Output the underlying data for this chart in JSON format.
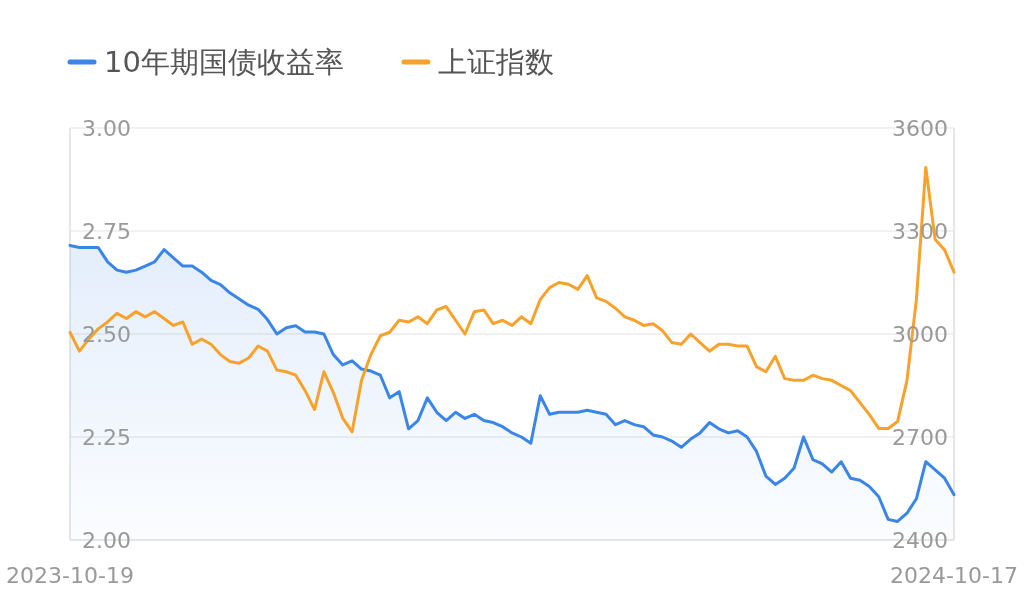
{
  "chart_data": {
    "type": "line",
    "categories": [
      "2023-10-19",
      null,
      null,
      null,
      null,
      null,
      null,
      null,
      null,
      null,
      null,
      null,
      null,
      null,
      null,
      null,
      null,
      null,
      null,
      null,
      null,
      null,
      null,
      null,
      null,
      null,
      null,
      null,
      null,
      null,
      null,
      null,
      null,
      null,
      null,
      null,
      null,
      null,
      null,
      null,
      null,
      null,
      null,
      null,
      null,
      null,
      null,
      null,
      null,
      null,
      null,
      null,
      null,
      null,
      null,
      null,
      null,
      null,
      null,
      null,
      null,
      null,
      null,
      null,
      null,
      null,
      null,
      null,
      null,
      null,
      null,
      null,
      null,
      null,
      null,
      null,
      null,
      null,
      null,
      null,
      null,
      null,
      null,
      null,
      null,
      null,
      null,
      null,
      null,
      null,
      null,
      null,
      null,
      null,
      "2024-10-17"
    ],
    "series": [
      {
        "name": "10年期国债收益率",
        "type": "area",
        "color": "#3a86e8",
        "values": [
          2.715,
          2.71,
          2.71,
          2.71,
          2.675,
          2.655,
          2.65,
          2.655,
          2.665,
          2.675,
          2.705,
          2.685,
          2.665,
          2.665,
          2.65,
          2.63,
          2.62,
          2.6,
          2.585,
          2.57,
          2.56,
          2.535,
          2.5,
          2.515,
          2.52,
          2.505,
          2.505,
          2.5,
          2.45,
          2.425,
          2.435,
          2.415,
          2.41,
          2.4,
          2.345,
          2.36,
          2.27,
          2.29,
          2.345,
          2.31,
          2.29,
          2.31,
          2.295,
          2.305,
          2.29,
          2.285,
          2.275,
          2.26,
          2.25,
          2.235,
          2.35,
          2.305,
          2.31,
          2.31,
          2.31,
          2.315,
          2.31,
          2.305,
          2.28,
          2.29,
          2.28,
          2.275,
          2.255,
          2.25,
          2.24,
          2.225,
          2.245,
          2.26,
          2.285,
          2.27,
          2.26,
          2.265,
          2.25,
          2.215,
          2.155,
          2.135,
          2.15,
          2.175,
          2.25,
          2.195,
          2.185,
          2.165,
          2.19,
          2.15,
          2.145,
          2.13,
          2.105,
          2.05,
          2.045,
          2.065,
          2.1,
          2.19,
          2.17,
          2.15,
          2.11
        ]
      },
      {
        "name": "上证指数",
        "axis": "y2",
        "color": "#f8a22c",
        "values": [
          3005,
          2950,
          2985,
          3015,
          3035,
          3060,
          3045,
          3065,
          3050,
          3065,
          3045,
          3025,
          3035,
          2970,
          2985,
          2970,
          2940,
          2920,
          2915,
          2930,
          2965,
          2950,
          2895,
          2890,
          2880,
          2835,
          2780,
          2890,
          2830,
          2755,
          2715,
          2865,
          2940,
          2995,
          3005,
          3040,
          3035,
          3050,
          3030,
          3070,
          3080,
          3040,
          3000,
          3065,
          3070,
          3030,
          3040,
          3025,
          3050,
          3030,
          3100,
          3135,
          3150,
          3145,
          3130,
          3170,
          3105,
          3095,
          3075,
          3050,
          3040,
          3025,
          3030,
          3010,
          2975,
          2970,
          3000,
          2975,
          2950,
          2970,
          2970,
          2965,
          2965,
          2905,
          2890,
          2935,
          2870,
          2865,
          2865,
          2880,
          2870,
          2865,
          2850,
          2835,
          2800,
          2765,
          2725,
          2725,
          2745,
          2865,
          3100,
          3485,
          3275,
          3245,
          3180
        ]
      }
    ],
    "ylim": [
      2.0,
      3.0
    ],
    "yticks": [
      {
        "value": 2.0,
        "label": "2.00"
      },
      {
        "value": 2.25,
        "label": "2.25"
      },
      {
        "value": 2.5,
        "label": "2.50"
      },
      {
        "value": 2.75,
        "label": "2.75"
      },
      {
        "value": 3.0,
        "label": "3.00"
      }
    ],
    "y2lim": [
      2400,
      3600
    ],
    "y2ticks": [
      2400,
      2700,
      3000,
      3300,
      3600
    ],
    "grid": "y",
    "legend": "top left"
  }
}
